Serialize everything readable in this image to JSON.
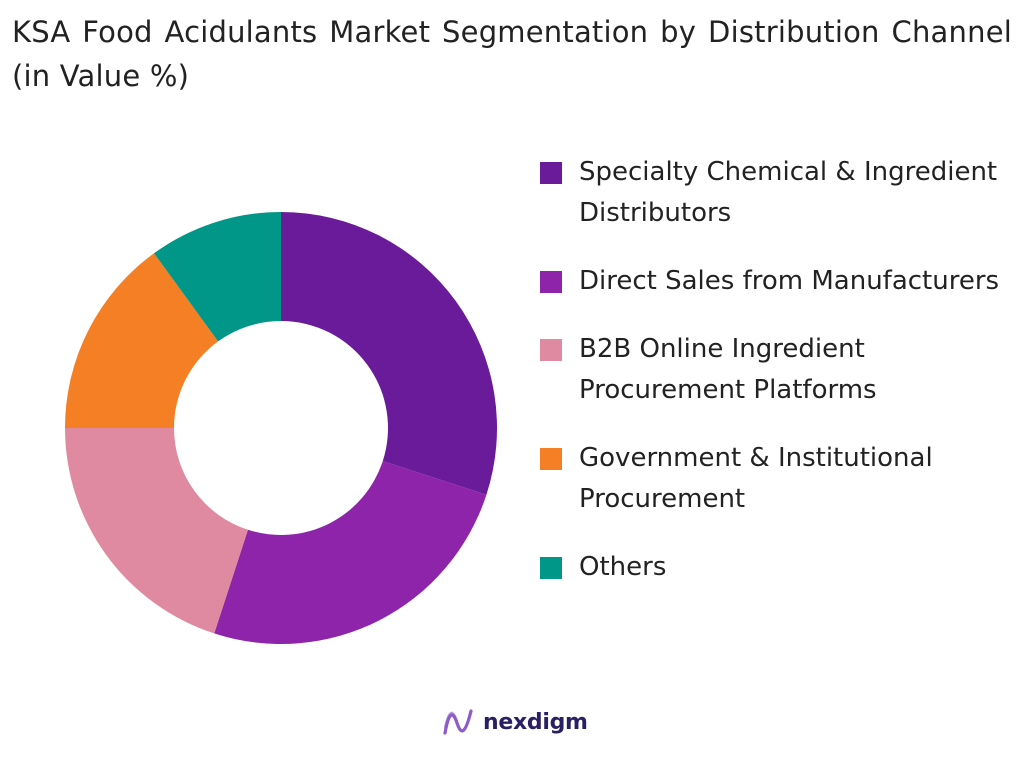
{
  "chart_data": {
    "type": "pie",
    "title": "KSA Food Acidulants Market Segmentation by Distribution Channel (in Value %)",
    "donut": true,
    "legend_position": "right",
    "categories": [
      "Specialty Chemical & Ingredient Distributors",
      "Direct Sales from Manufacturers",
      "B2B Online Ingredient Procurement Platforms",
      "Government & Institutional Procurement",
      "Others"
    ],
    "values": [
      30,
      25,
      20,
      15,
      10
    ],
    "colors": [
      "#6a1b9a",
      "#8e24aa",
      "#e08aa2",
      "#f47f25",
      "#009688"
    ]
  },
  "brand": {
    "name": "nexdigm",
    "logo_color": "#2b1f63",
    "logo_accent": "#8e5cc8"
  }
}
